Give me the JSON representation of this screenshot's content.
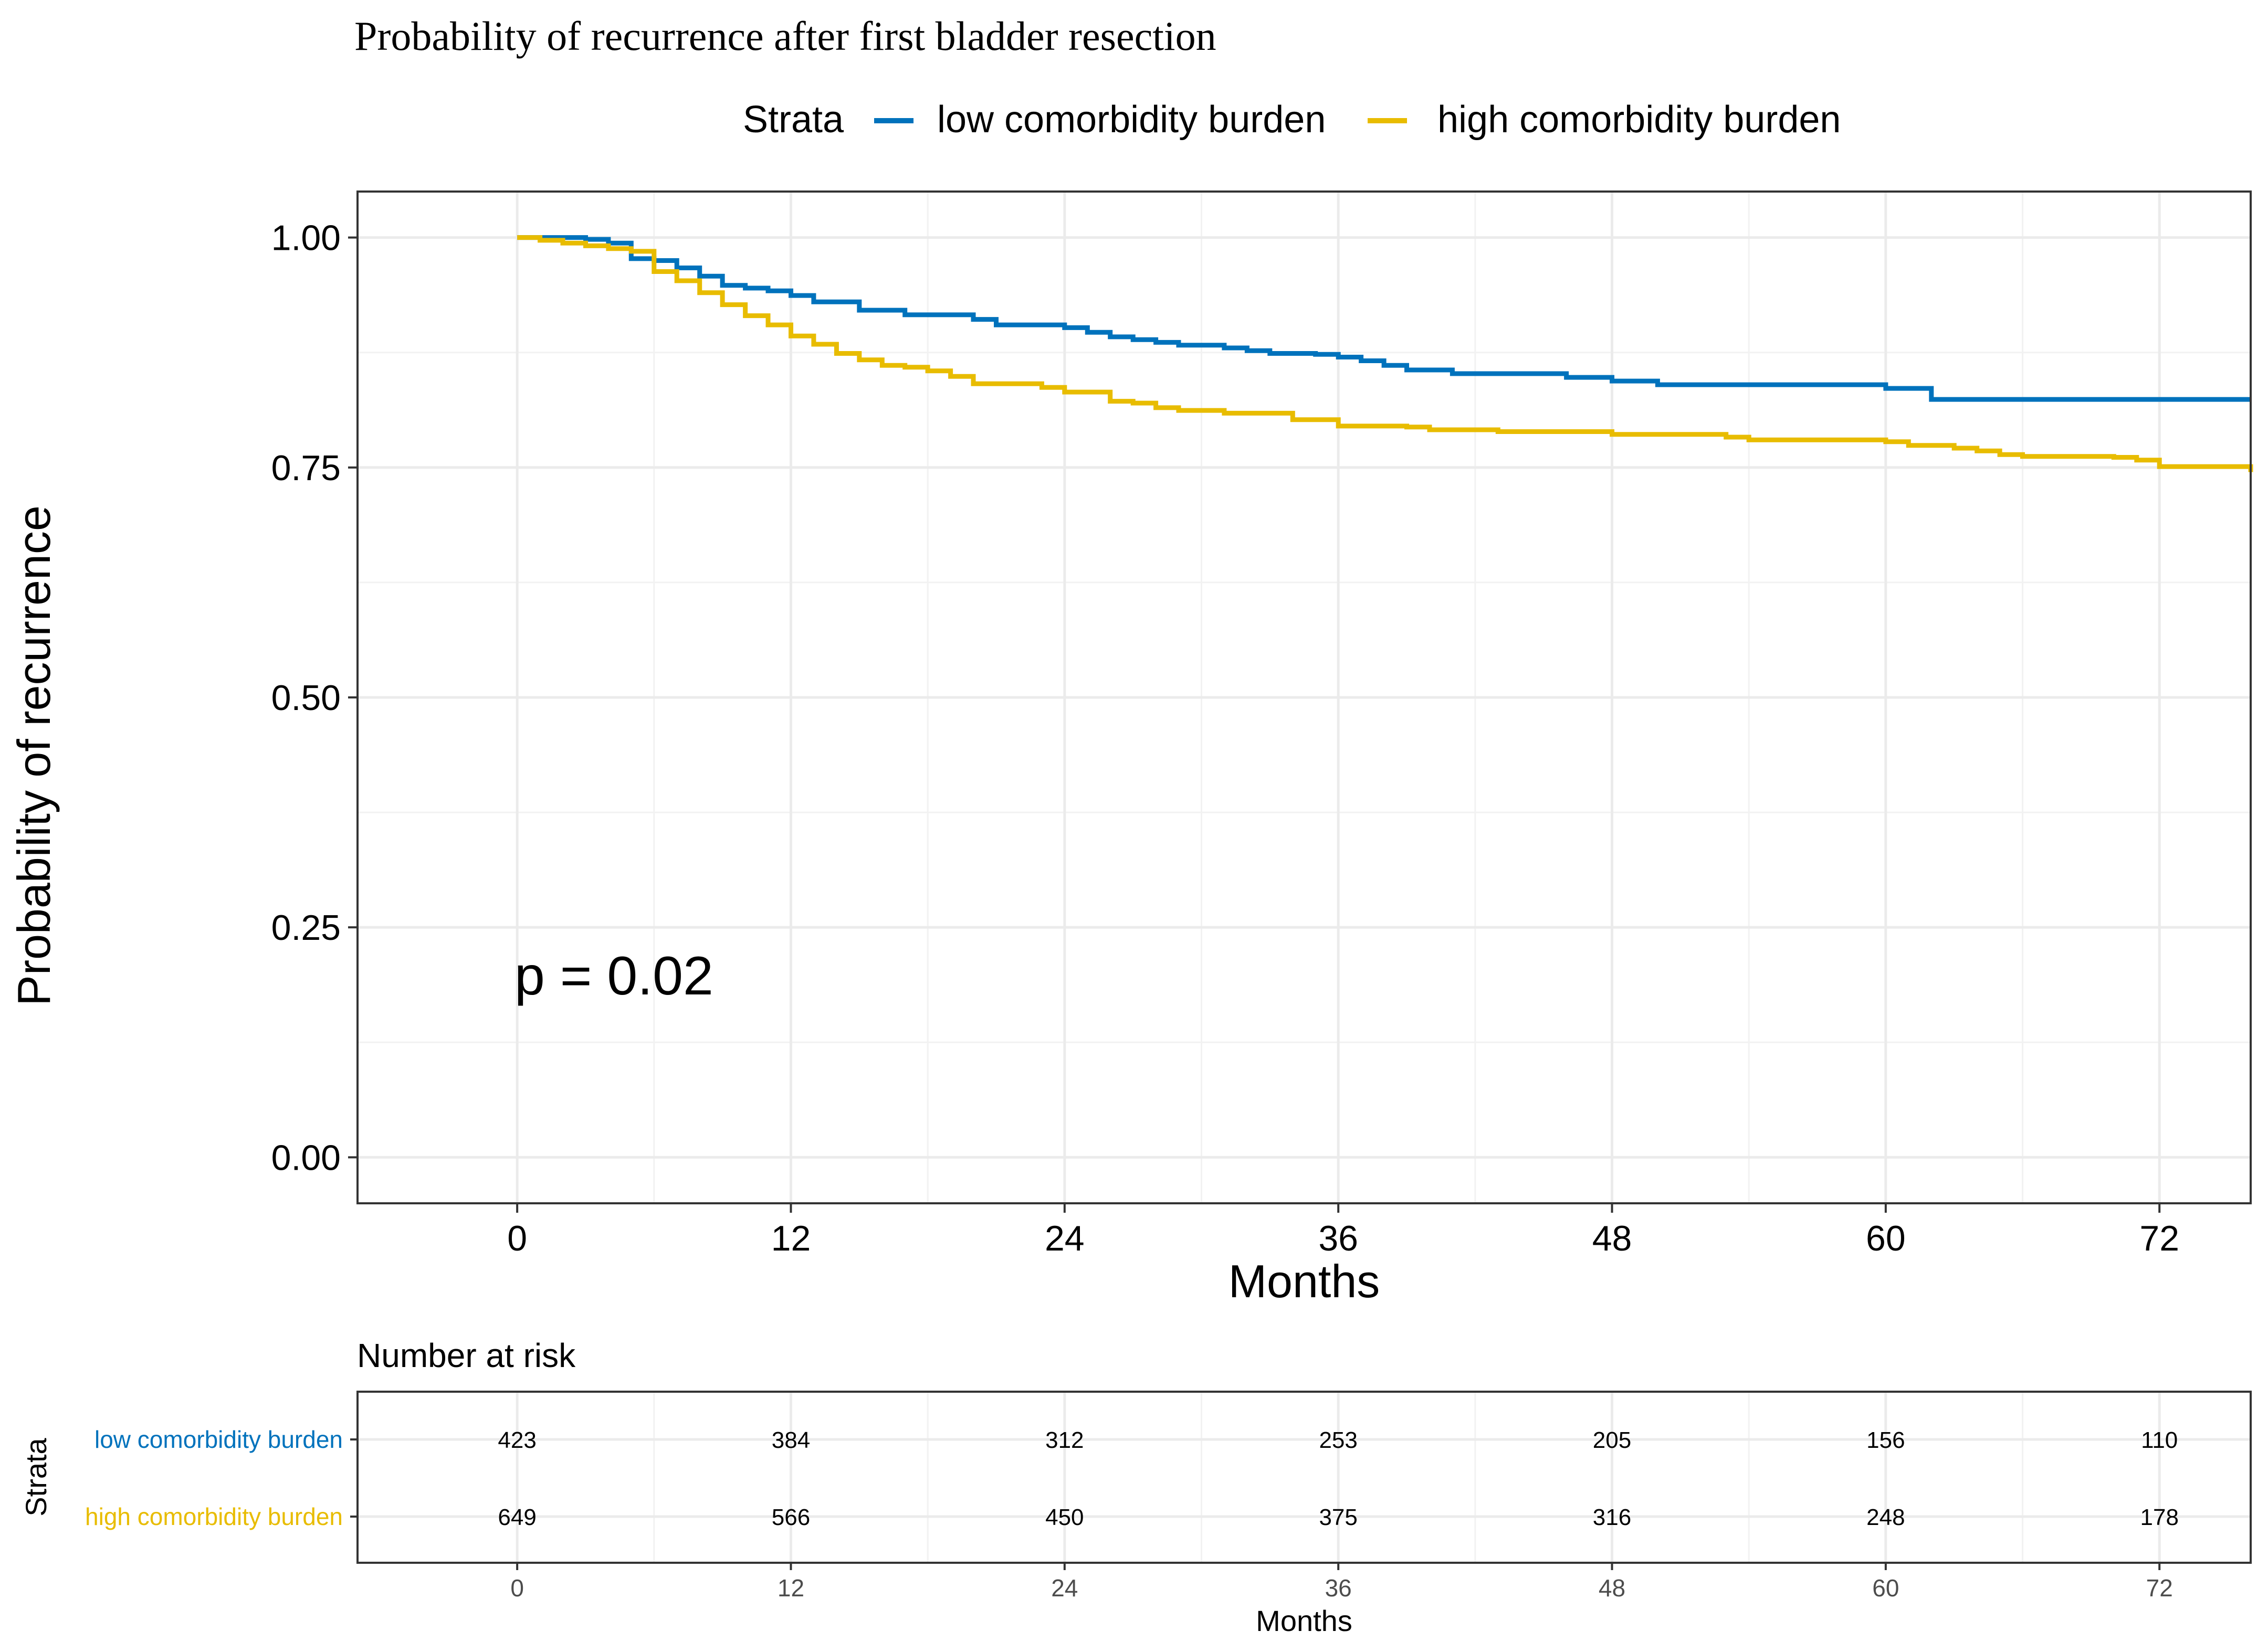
{
  "chart_data": {
    "type": "line",
    "step": true,
    "title": "Probability of recurrence after first bladder resection",
    "xlabel": "Months",
    "ylabel": "Probability of recurrence",
    "xlim": [
      -7,
      76
    ],
    "ylim": [
      -0.05,
      1.05
    ],
    "x_ticks": [
      0,
      12,
      24,
      36,
      48,
      60,
      72
    ],
    "y_ticks": [
      0.0,
      0.25,
      0.5,
      0.75,
      1.0
    ],
    "y_tick_labels": [
      "0.00",
      "0.25",
      "0.50",
      "0.75",
      "1.00"
    ],
    "grid": true,
    "legend": {
      "title": "Strata",
      "placement": "top",
      "entries": [
        "low comorbidity burden",
        "high comorbidity burden"
      ]
    },
    "annotation": "p = 0.02",
    "series": [
      {
        "name": "low comorbidity burden",
        "color": "#0072BC",
        "x": [
          0,
          3,
          4,
          5,
          6,
          7,
          8,
          9,
          10,
          11,
          12,
          13,
          15,
          17,
          20,
          21,
          24,
          25,
          26,
          27,
          28,
          29,
          31,
          32,
          33,
          35,
          36,
          37,
          38,
          39,
          41,
          46,
          48,
          50,
          52,
          60,
          62,
          76
        ],
        "y": [
          1.0,
          0.998,
          0.994,
          0.977,
          0.975,
          0.967,
          0.958,
          0.948,
          0.945,
          0.942,
          0.937,
          0.93,
          0.921,
          0.916,
          0.911,
          0.905,
          0.902,
          0.897,
          0.892,
          0.889,
          0.886,
          0.883,
          0.88,
          0.877,
          0.874,
          0.873,
          0.87,
          0.866,
          0.861,
          0.856,
          0.852,
          0.848,
          0.844,
          0.84,
          0.84,
          0.836,
          0.824,
          0.824
        ]
      },
      {
        "name": "high comorbidity burden",
        "color": "#E8BC00",
        "x": [
          0,
          1,
          2,
          3,
          4,
          5,
          6,
          7,
          8,
          9,
          10,
          11,
          12,
          13,
          14,
          15,
          16,
          17,
          18,
          19,
          20,
          23,
          24,
          26,
          27,
          28,
          29,
          31,
          34,
          36,
          39,
          40,
          43,
          48,
          53,
          54,
          60,
          61,
          63,
          64,
          65,
          66,
          70,
          71,
          72,
          76
        ],
        "y": [
          1.0,
          0.997,
          0.994,
          0.991,
          0.988,
          0.985,
          0.963,
          0.953,
          0.94,
          0.927,
          0.915,
          0.905,
          0.893,
          0.884,
          0.874,
          0.867,
          0.861,
          0.859,
          0.855,
          0.849,
          0.841,
          0.837,
          0.832,
          0.822,
          0.82,
          0.815,
          0.812,
          0.809,
          0.802,
          0.795,
          0.794,
          0.791,
          0.789,
          0.786,
          0.783,
          0.78,
          0.778,
          0.774,
          0.771,
          0.768,
          0.764,
          0.762,
          0.761,
          0.758,
          0.751,
          0.745
        ]
      }
    ],
    "risk_table": {
      "title": "Number at risk",
      "y_title": "Strata",
      "xlabel": "Months",
      "times": [
        0,
        12,
        24,
        36,
        48,
        60,
        72
      ],
      "rows": [
        {
          "name": "low comorbidity burden",
          "color": "#0072BC",
          "values": [
            "423",
            "384",
            "312",
            "253",
            "205",
            "156",
            "110"
          ]
        },
        {
          "name": "high comorbidity burden",
          "color": "#E8BC00",
          "values": [
            "649",
            "566",
            "450",
            "375",
            "316",
            "248",
            "178"
          ]
        }
      ]
    }
  }
}
